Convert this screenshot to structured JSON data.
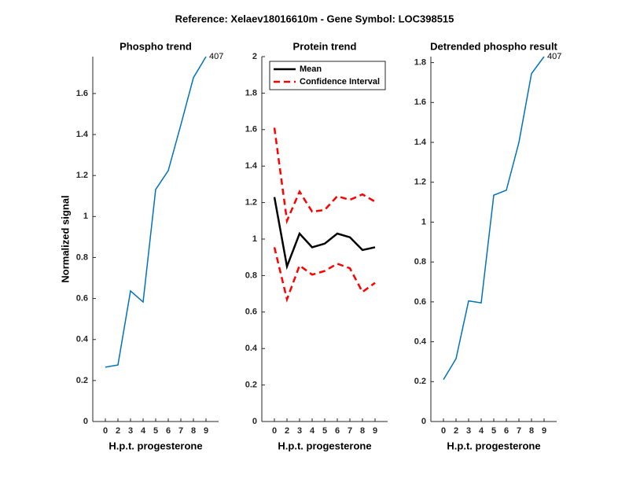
{
  "suptitle": "Reference:  Xelaev18016610m - Gene Symbol:  LOC398515",
  "chart_data": [
    {
      "type": "line",
      "title": "Phospho trend",
      "xlabel": "H.p.t. progesterone",
      "ylabel": "Normalized signal",
      "categories": [
        "0",
        "2",
        "3",
        "4",
        "5",
        "6",
        "7",
        "8",
        "9"
      ],
      "ylim": [
        0,
        1.78
      ],
      "yticks": [
        0,
        0.2,
        0.4,
        0.6,
        0.8,
        1,
        1.2,
        1.4,
        1.6
      ],
      "series": [
        {
          "color": "#0072bd",
          "values": [
            0.265,
            0.276,
            0.637,
            0.583,
            1.132,
            1.224,
            1.447,
            1.677,
            1.78
          ]
        }
      ],
      "annotation": "407"
    },
    {
      "type": "line",
      "title": "Protein trend",
      "xlabel": "H.p.t. progesterone",
      "categories": [
        "0",
        "2",
        "3",
        "4",
        "5",
        "6",
        "7",
        "8",
        "9"
      ],
      "ylim": [
        0,
        2
      ],
      "yticks": [
        0,
        0.2,
        0.4,
        0.6,
        0.8,
        1,
        1.2,
        1.4,
        1.6,
        1.8,
        2
      ],
      "legend": "upper left",
      "series": [
        {
          "name": "Mean",
          "color": "#000000",
          "dashed": false,
          "values": [
            1.23,
            0.85,
            1.03,
            0.955,
            0.975,
            1.03,
            1.01,
            0.94,
            0.955
          ]
        },
        {
          "name": "Confidence Interval",
          "color": "#ff0000",
          "dashed": true,
          "values": [
            1.61,
            1.1,
            1.26,
            1.15,
            1.16,
            1.235,
            1.215,
            1.245,
            1.205
          ],
          "lower": [
            0.955,
            0.67,
            0.855,
            0.805,
            0.825,
            0.865,
            0.84,
            0.71,
            0.76
          ]
        }
      ]
    },
    {
      "type": "line",
      "title": "Detrended phospho result",
      "xlabel": "H.p.t. progesterone",
      "categories": [
        "0",
        "2",
        "3",
        "4",
        "5",
        "6",
        "7",
        "8",
        "9"
      ],
      "ylim": [
        0,
        1.83
      ],
      "yticks": [
        0,
        0.2,
        0.4,
        0.6,
        0.8,
        1,
        1.2,
        1.4,
        1.6,
        1.8
      ],
      "series": [
        {
          "color": "#0072bd",
          "values": [
            0.21,
            0.315,
            0.605,
            0.595,
            1.135,
            1.16,
            1.4,
            1.745,
            1.83
          ]
        }
      ],
      "annotation": "407"
    }
  ]
}
